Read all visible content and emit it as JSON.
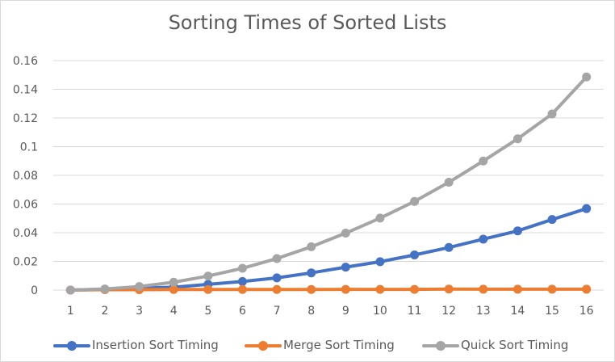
{
  "chart_data": {
    "type": "line",
    "title": "Sorting Times of Sorted Lists",
    "xlabel": "",
    "ylabel": "",
    "x": [
      "1",
      "2",
      "3",
      "4",
      "5",
      "6",
      "7",
      "8",
      "9",
      "10",
      "11",
      "12",
      "13",
      "14",
      "15",
      "16"
    ],
    "ylim": [
      0,
      0.16
    ],
    "yticks": [
      "0",
      "0.02",
      "0.04",
      "0.06",
      "0.08",
      "0.1",
      "0.12",
      "0.14",
      "0.16"
    ],
    "grid": true,
    "legend_position": "bottom",
    "series": [
      {
        "name": "Insertion Sort Timing",
        "color": "#4472C4",
        "values": [
          0,
          0.0005,
          0.0015,
          0.002,
          0.004,
          0.006,
          0.0085,
          0.012,
          0.016,
          0.0198,
          0.0245,
          0.0297,
          0.0355,
          0.0413,
          0.0492,
          0.0568
        ]
      },
      {
        "name": "Merge Sort Timing",
        "color": "#ED7D31",
        "values": [
          0,
          0.0003,
          0.0003,
          0.0004,
          0.0004,
          0.0004,
          0.0004,
          0.0004,
          0.0005,
          0.0005,
          0.0005,
          0.0007,
          0.0006,
          0.0006,
          0.0006,
          0.0006
        ]
      },
      {
        "name": "Quick Sort Timing",
        "color": "#A5A5A5",
        "values": [
          0,
          0.0008,
          0.0025,
          0.0055,
          0.0098,
          0.0152,
          0.022,
          0.0302,
          0.0397,
          0.0502,
          0.0618,
          0.0752,
          0.09,
          0.1055,
          0.1228,
          0.1486
        ]
      }
    ]
  }
}
